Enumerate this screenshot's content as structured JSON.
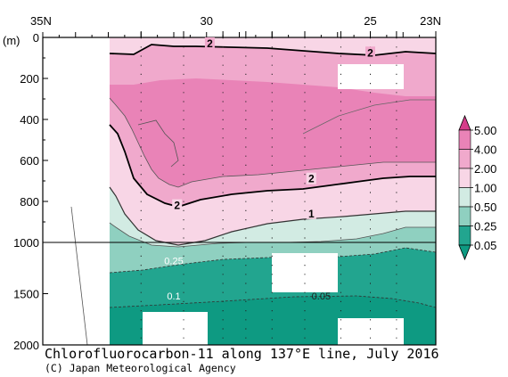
{
  "chart_data": {
    "type": "contour",
    "title": "Chlorofluorocarbon-11 along 137°E line, July 2016",
    "credit": "(C) Japan Meteorological Agency",
    "y_unit": "(m)",
    "x_ticks": [
      {
        "lat": 35,
        "label": "35N"
      },
      {
        "lat": 30,
        "label": "30"
      },
      {
        "lat": 25,
        "label": "25"
      },
      {
        "lat": 23,
        "label": "23N"
      }
    ],
    "x_range": [
      35,
      23
    ],
    "y_range": [
      0,
      2000
    ],
    "y_ticks": [
      {
        "depth": 0,
        "label": "0"
      },
      {
        "depth": 200,
        "label": "200"
      },
      {
        "depth": 400,
        "label": "400"
      },
      {
        "depth": 600,
        "label": "600"
      },
      {
        "depth": 800,
        "label": "800"
      },
      {
        "depth": 1000,
        "label": "1000"
      },
      {
        "depth": 1500,
        "label": "1500"
      },
      {
        "depth": 2000,
        "label": "2000"
      }
    ],
    "y_scale_break_depth": 1000,
    "station_lats": [
      32.0,
      30.7,
      29.5,
      28.8,
      28.0,
      27.0,
      25.9,
      25.0,
      24.2,
      23.0
    ],
    "legend": {
      "labels": [
        "5.00",
        "4.00",
        "2.00",
        "1.00",
        "0.50",
        "0.25",
        "0.05"
      ],
      "colors": [
        "#d63c8a",
        "#e983b7",
        "#f0a9cc",
        "#f8d6e6",
        "#d2ebe3",
        "#8fd0c0",
        "#22a58f",
        "#0e9a82"
      ]
    },
    "contour_labels": [
      {
        "value": "2",
        "lat": 29.9,
        "depth": 30
      },
      {
        "value": "2",
        "lat": 25.0,
        "depth": 75
      },
      {
        "value": "2",
        "lat": 26.8,
        "depth": 690
      },
      {
        "value": "2",
        "lat": 30.9,
        "depth": 820
      },
      {
        "value": "1",
        "lat": 26.8,
        "depth": 860
      },
      {
        "value": "0.25",
        "lat": 31.0,
        "depth": 1180
      },
      {
        "value": "0.1",
        "lat": 31.0,
        "depth": 1520
      },
      {
        "value": "0.05",
        "lat": 26.5,
        "depth": 1520
      }
    ]
  }
}
